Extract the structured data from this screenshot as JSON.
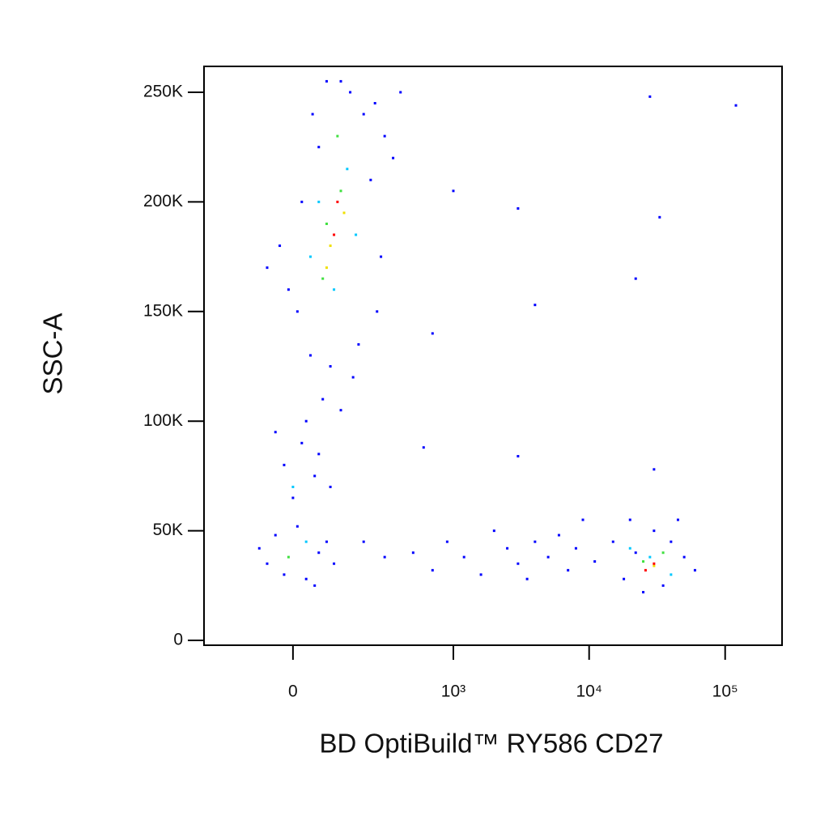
{
  "chart_data": {
    "type": "scatter",
    "x_label": "BD OptiBuild™ RY586 CD27",
    "y_label": "SSC-A",
    "xscale": "biexponential",
    "xlim": [
      -285,
      262000
    ],
    "ylim": [
      -2200,
      261800
    ],
    "xticks": [
      0,
      {
        "value": 1000,
        "label": "10³"
      },
      {
        "value": 10000,
        "label": "10⁴"
      },
      {
        "value": 100000,
        "label": "10⁵"
      }
    ],
    "yticks": [
      0,
      {
        "value": 50000,
        "label": "50K"
      },
      {
        "value": 100000,
        "label": "100K"
      },
      {
        "value": 150000,
        "label": "150K"
      },
      {
        "value": 200000,
        "label": "200K"
      },
      {
        "value": 250000,
        "label": "250K"
      }
    ],
    "x": [
      45,
      80,
      150,
      250,
      300,
      20,
      -30,
      -60,
      10,
      40,
      90,
      180,
      260,
      280,
      230,
      200,
      120,
      60,
      -10,
      350,
      400,
      160,
      70,
      30,
      20,
      -20,
      50,
      90,
      -40,
      0,
      60,
      120,
      -60,
      -20,
      30,
      60,
      80,
      -40,
      10,
      100,
      -80,
      50,
      200,
      300,
      500,
      700,
      900,
      1200,
      1600,
      2000,
      2500,
      3000,
      3500,
      4000,
      5000,
      6000,
      7000,
      8000,
      9000,
      11000,
      15000,
      18000,
      20000,
      25000,
      30000,
      35000,
      40000,
      50000,
      60000,
      22000,
      45000,
      1000,
      3000,
      4000,
      28000,
      33000,
      120000,
      22000,
      600,
      700,
      3000,
      30000,
      60,
      140,
      100,
      40,
      170,
      0,
      30,
      20000,
      40000,
      28000,
      80,
      120,
      70,
      110,
      -10,
      25000,
      35000,
      90,
      130,
      80,
      30000,
      100,
      110,
      30000,
      26000
    ],
    "y": [
      240000,
      255000,
      250000,
      245000,
      230000,
      200000,
      180000,
      170000,
      150000,
      130000,
      125000,
      135000,
      150000,
      175000,
      210000,
      240000,
      255000,
      225000,
      160000,
      220000,
      250000,
      120000,
      110000,
      100000,
      90000,
      80000,
      75000,
      70000,
      95000,
      65000,
      85000,
      105000,
      35000,
      30000,
      28000,
      40000,
      45000,
      48000,
      52000,
      35000,
      42000,
      25000,
      45000,
      38000,
      40000,
      32000,
      45000,
      38000,
      30000,
      50000,
      42000,
      35000,
      28000,
      45000,
      38000,
      48000,
      32000,
      42000,
      55000,
      36000,
      45000,
      28000,
      55000,
      22000,
      50000,
      25000,
      45000,
      38000,
      32000,
      40000,
      55000,
      205000,
      197000,
      153000,
      248000,
      193000,
      244000,
      165000,
      88000,
      140000,
      84000,
      78000,
      200000,
      215000,
      160000,
      175000,
      185000,
      70000,
      45000,
      42000,
      30000,
      38000,
      190000,
      205000,
      165000,
      230000,
      38000,
      36000,
      40000,
      180000,
      195000,
      170000,
      34000,
      185000,
      200000,
      35000,
      32000
    ],
    "colors": [
      "#0000ff",
      "#0000ff",
      "#0000ff",
      "#0000ff",
      "#0000ff",
      "#0000ff",
      "#0000ff",
      "#0000ff",
      "#0000ff",
      "#0000ff",
      "#0000ff",
      "#0000ff",
      "#0000ff",
      "#0000ff",
      "#0000ff",
      "#0000ff",
      "#0000ff",
      "#0000ff",
      "#0000ff",
      "#0000ff",
      "#0000ff",
      "#0000ff",
      "#0000ff",
      "#0000ff",
      "#0000ff",
      "#0000ff",
      "#0000ff",
      "#0000ff",
      "#0000ff",
      "#0000ff",
      "#0000ff",
      "#0000ff",
      "#0000ff",
      "#0000ff",
      "#0000ff",
      "#0000ff",
      "#0000ff",
      "#0000ff",
      "#0000ff",
      "#0000ff",
      "#0000ff",
      "#0000ff",
      "#0000ff",
      "#0000ff",
      "#0000ff",
      "#0000ff",
      "#0000ff",
      "#0000ff",
      "#0000ff",
      "#0000ff",
      "#0000ff",
      "#0000ff",
      "#0000ff",
      "#0000ff",
      "#0000ff",
      "#0000ff",
      "#0000ff",
      "#0000ff",
      "#0000ff",
      "#0000ff",
      "#0000ff",
      "#0000ff",
      "#0000ff",
      "#0000ff",
      "#0000ff",
      "#0000ff",
      "#0000ff",
      "#0000ff",
      "#0000ff",
      "#0000ff",
      "#0000ff",
      "#0000ff",
      "#0000ff",
      "#0000ff",
      "#0000ff",
      "#0000ff",
      "#0000ff",
      "#0000ff",
      "#0000ff",
      "#0000ff",
      "#0000ff",
      "#0000ff",
      "#00c8ff",
      "#00c8ff",
      "#00c8ff",
      "#00c8ff",
      "#00c8ff",
      "#00c8ff",
      "#00c8ff",
      "#00c8ff",
      "#00c8ff",
      "#00c8ff",
      "#40e040",
      "#40e040",
      "#40e040",
      "#40e040",
      "#40e040",
      "#40e040",
      "#40e040",
      "#f0e000",
      "#f0e000",
      "#f0e000",
      "#f0e000",
      "#ff0000",
      "#ff0000",
      "#ff0000",
      "#ff0000"
    ]
  }
}
